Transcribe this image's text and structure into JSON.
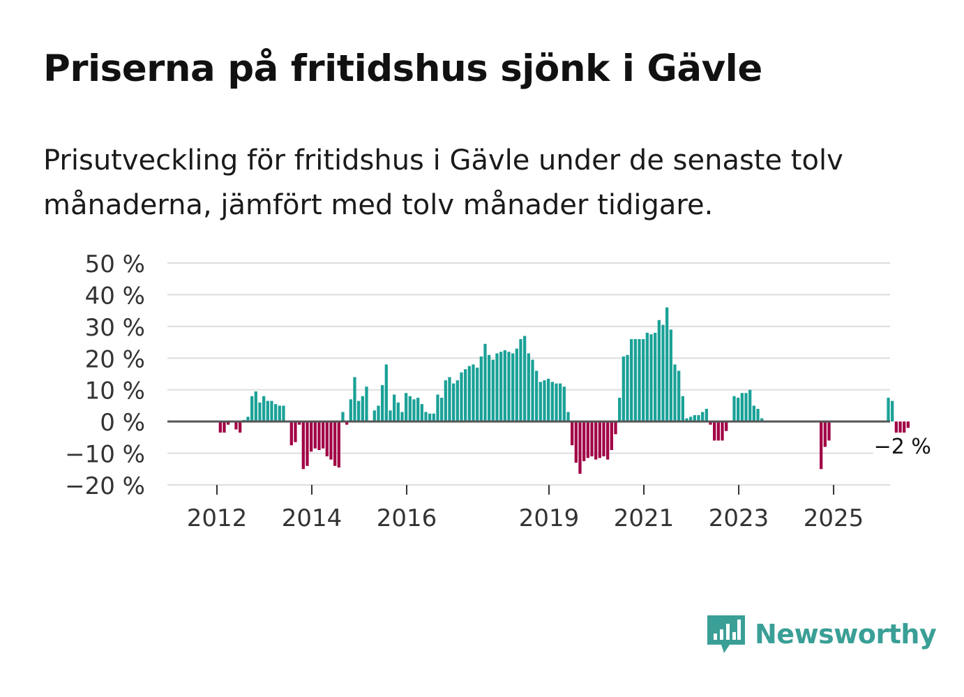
{
  "title": "Priserna på fritidshus sjönk i Gävle",
  "subtitle": "Prisutveckling för fritidshus i Gävle under de senaste tolv månaderna, jämfört med tolv månader tidigare.",
  "brand": {
    "name": "Newsworthy",
    "logo_icon": "bar-chart-speech-bubble-icon"
  },
  "colors": {
    "positive": "#1aa197",
    "negative": "#a10045",
    "grid": "#dddddd",
    "zero_line": "#555555",
    "brand": "#3a9f96"
  },
  "chart_data": {
    "type": "bar",
    "title": "Priserna på fritidshus sjönk i Gävle",
    "xlabel": "",
    "ylabel": "",
    "ylim": [
      -20,
      50
    ],
    "y_ticks": [
      50,
      40,
      30,
      20,
      10,
      0,
      -10,
      -20
    ],
    "y_tick_labels": [
      "50 %",
      "40 %",
      "30 %",
      "20 %",
      "10 %",
      "0 %",
      "−10 %",
      "−20 %"
    ],
    "x_start": "2011-01",
    "x_ticks": [
      {
        "year": 2012,
        "label": "2012"
      },
      {
        "year": 2014,
        "label": "2014"
      },
      {
        "year": 2016,
        "label": "2016"
      },
      {
        "year": 2019,
        "label": "2019"
      },
      {
        "year": 2021,
        "label": "2021"
      },
      {
        "year": 2023,
        "label": "2023"
      },
      {
        "year": 2025,
        "label": "2025"
      }
    ],
    "annotation": {
      "label": "−2 %",
      "value": -2
    },
    "unit": "%",
    "values": [
      0,
      0,
      0,
      0,
      0,
      0,
      0,
      0,
      0,
      0,
      0,
      0,
      0,
      -3.5,
      -3.5,
      -1,
      0,
      -2.5,
      -3.5,
      0.5,
      1.5,
      8,
      9.5,
      6,
      8,
      6.5,
      6.5,
      5.5,
      5,
      5,
      0,
      -7.5,
      -6.5,
      -1,
      -15,
      -14,
      -9.5,
      -8.5,
      -9,
      -8.5,
      -11,
      -12,
      -14,
      -14.5,
      3,
      -1,
      7,
      14,
      6.5,
      8,
      11,
      0,
      3.5,
      5,
      11.5,
      18,
      3.5,
      8.5,
      6,
      3,
      9,
      8,
      7,
      7.5,
      5.5,
      3,
      2.5,
      2.5,
      8.5,
      7.5,
      13,
      14,
      12,
      13,
      15.5,
      16.5,
      17.5,
      18,
      17,
      20.5,
      24.5,
      21,
      19.5,
      21.5,
      22,
      22.5,
      22,
      21.5,
      23,
      26,
      27,
      21.5,
      19.5,
      16,
      12.5,
      13,
      13.5,
      12.5,
      12,
      12,
      11,
      3,
      -7.5,
      -13,
      -16.5,
      -12.5,
      -11.5,
      -11,
      -12,
      -11.5,
      -11,
      -12,
      -9,
      -4,
      7.5,
      20.5,
      21,
      26,
      26,
      26,
      26,
      28,
      27.5,
      28,
      32,
      30.5,
      36,
      29,
      18,
      16,
      8,
      1,
      1.5,
      2,
      2,
      3,
      4,
      -1,
      -6,
      -6,
      -6,
      -3,
      0,
      8,
      7.5,
      9,
      9,
      10,
      5,
      4,
      1,
      0,
      0,
      0,
      0,
      0,
      0,
      0,
      0,
      0,
      0,
      0,
      0,
      0,
      0,
      -15,
      -8,
      -6,
      0,
      0,
      0,
      0,
      0,
      0,
      0,
      0,
      0,
      0,
      0,
      0,
      0,
      0,
      7.5,
      6.5,
      -4,
      -3.5,
      -3.5,
      -2
    ]
  }
}
